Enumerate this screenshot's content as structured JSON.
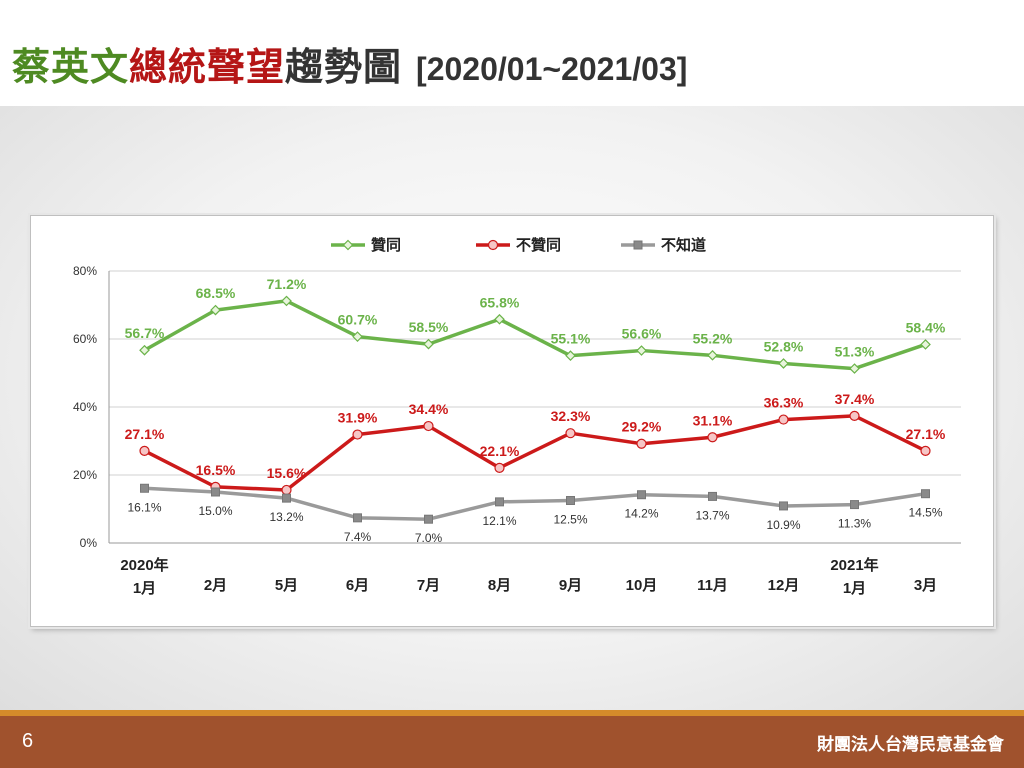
{
  "slide": {
    "title_part1": "蔡英文",
    "title_part2": "總統聲望",
    "title_part3": "趨勢圖",
    "title_range": "[2020/01~2021/03]",
    "page_number": "6",
    "organization": "財團法人台灣民意基金會"
  },
  "colors": {
    "approve": "#6bb34a",
    "disapprove": "#cc1a1a",
    "unknown": "#9a9a9a"
  },
  "chart_data": {
    "type": "line",
    "categories": [
      [
        "2020年",
        "1月"
      ],
      [
        "2月"
      ],
      [
        "5月"
      ],
      [
        "6月"
      ],
      [
        "7月"
      ],
      [
        "8月"
      ],
      [
        "9月"
      ],
      [
        "10月"
      ],
      [
        "11月"
      ],
      [
        "12月"
      ],
      [
        "2021年",
        "1月"
      ],
      [
        "3月"
      ]
    ],
    "yticks": [
      "0%",
      "20%",
      "40%",
      "60%",
      "80%"
    ],
    "ylim": [
      0,
      80
    ],
    "grid": true,
    "legend_position": "top",
    "series": [
      {
        "name": "贊同",
        "values": [
          56.7,
          68.5,
          71.2,
          60.7,
          58.5,
          65.8,
          55.1,
          56.6,
          55.2,
          52.8,
          51.3,
          58.4
        ],
        "labels": [
          "56.7%",
          "68.5%",
          "71.2%",
          "60.7%",
          "58.5%",
          "65.8%",
          "55.1%",
          "56.6%",
          "55.2%",
          "52.8%",
          "51.3%",
          "58.4%"
        ]
      },
      {
        "name": "不贊同",
        "values": [
          27.1,
          16.5,
          15.6,
          31.9,
          34.4,
          22.1,
          32.3,
          29.2,
          31.1,
          36.3,
          37.4,
          27.1
        ],
        "labels": [
          "27.1%",
          "16.5%",
          "15.6%",
          "31.9%",
          "34.4%",
          "22.1%",
          "32.3%",
          "29.2%",
          "31.1%",
          "36.3%",
          "37.4%",
          "27.1%"
        ]
      },
      {
        "name": "不知道",
        "values": [
          16.1,
          15.0,
          13.2,
          7.4,
          7.0,
          12.1,
          12.5,
          14.2,
          13.7,
          10.9,
          11.3,
          14.5
        ],
        "labels": [
          "16.1%",
          "15.0%",
          "13.2%",
          "7.4%",
          "7.0%",
          "12.1%",
          "12.5%",
          "14.2%",
          "13.7%",
          "10.9%",
          "11.3%",
          "14.5%"
        ]
      }
    ]
  }
}
